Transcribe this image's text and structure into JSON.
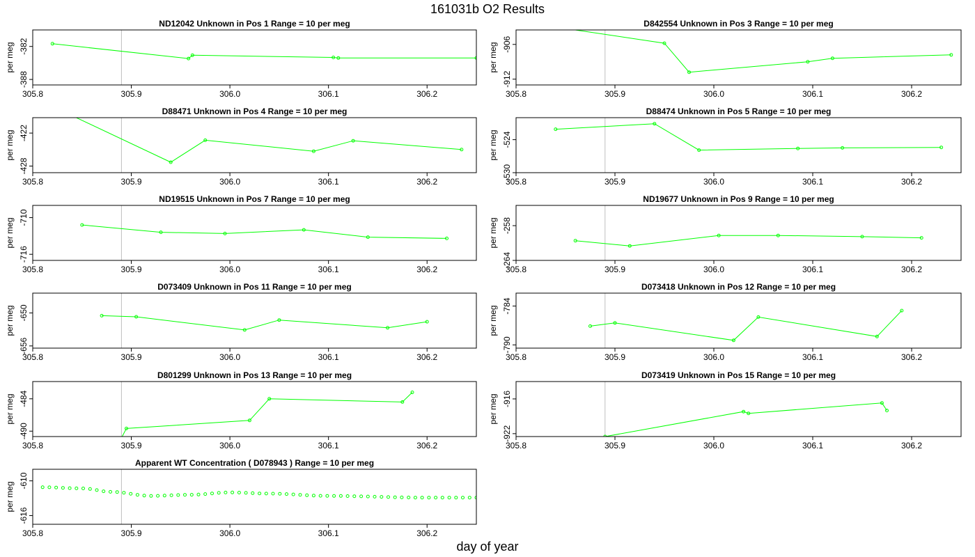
{
  "page": {
    "title": "161031b  O2 Results",
    "xlabel": "day of year"
  },
  "style": {
    "series_color": "#00ff00",
    "marker_line_color": "#bebebe",
    "frame_color": "#000000"
  },
  "chart_data": [
    {
      "type": "line",
      "title": "ND12042    Unknown in Pos 1         Range = 10 per meg",
      "xlabel": "",
      "ylabel": "per meg",
      "xlim": [
        305.8,
        306.25
      ],
      "ylim": [
        -389,
        -379
      ],
      "yticks": [
        -382,
        -388
      ],
      "xticks": [
        305.8,
        305.9,
        306.0,
        306.1,
        306.2
      ],
      "vlines": [
        305.89,
        306.25
      ],
      "series": [
        {
          "x": [
            305.82,
            305.958,
            305.962,
            306.105,
            306.11,
            306.25
          ],
          "y": [
            -381.5,
            -384.2,
            -383.6,
            -384.0,
            -384.1,
            -384.1
          ]
        }
      ]
    },
    {
      "type": "line",
      "title": "D842554    Unknown in Pos 3         Range = 10 per meg",
      "xlabel": "",
      "ylabel": "per meg",
      "xlim": [
        305.8,
        306.25
      ],
      "ylim": [
        -913,
        -903.5
      ],
      "yticks": [
        -906,
        -912
      ],
      "xticks": [
        305.8,
        305.9,
        306.0,
        306.1,
        306.2
      ],
      "vlines": [
        305.89,
        306.25
      ],
      "series": [
        {
          "x": [
            305.84,
            305.95,
            305.975,
            306.095,
            306.12,
            306.24
          ],
          "y": [
            -903.0,
            -905.8,
            -910.8,
            -909.0,
            -908.4,
            -907.8
          ]
        }
      ]
    },
    {
      "type": "line",
      "title": "D88471    Unknown in Pos 4         Range = 10 per meg",
      "xlabel": "",
      "ylabel": "per meg",
      "xlim": [
        305.8,
        306.25
      ],
      "ylim": [
        -429.2,
        -419.2
      ],
      "yticks": [
        -422,
        -428
      ],
      "xticks": [
        305.8,
        305.9,
        306.0,
        306.1,
        306.2
      ],
      "vlines": [
        305.89,
        306.25
      ],
      "series": [
        {
          "x": [
            305.83,
            305.94,
            305.975,
            306.085,
            306.125,
            306.235
          ],
          "y": [
            -418.0,
            -427.3,
            -423.3,
            -425.3,
            -423.4,
            -425.0
          ]
        }
      ]
    },
    {
      "type": "line",
      "title": "D88474    Unknown in Pos 5         Range = 10 per meg",
      "xlabel": "",
      "ylabel": "per meg",
      "xlim": [
        305.8,
        306.25
      ],
      "ylim": [
        -530,
        -520
      ],
      "yticks": [
        -524,
        -530
      ],
      "xticks": [
        305.8,
        305.9,
        306.0,
        306.1,
        306.2
      ],
      "vlines": [
        305.89,
        306.25
      ],
      "series": [
        {
          "x": [
            305.84,
            305.94,
            305.985,
            306.085,
            306.13,
            306.23
          ],
          "y": [
            -522.1,
            -521.1,
            -525.9,
            -525.6,
            -525.5,
            -525.4
          ]
        }
      ]
    },
    {
      "type": "line",
      "title": "ND19515    Unknown in Pos 7         Range = 10 per meg",
      "xlabel": "",
      "ylabel": "per meg",
      "xlim": [
        305.8,
        306.25
      ],
      "ylim": [
        -717,
        -708
      ],
      "yticks": [
        -710,
        -716
      ],
      "xticks": [
        305.8,
        305.9,
        306.0,
        306.1,
        306.2
      ],
      "vlines": [
        305.89,
        306.25
      ],
      "series": [
        {
          "x": [
            305.85,
            305.93,
            305.995,
            306.075,
            306.14,
            306.22
          ],
          "y": [
            -711.2,
            -712.4,
            -712.6,
            -712.0,
            -713.2,
            -713.4
          ]
        }
      ]
    },
    {
      "type": "line",
      "title": "ND19677    Unknown in Pos 9         Range = 10 per meg",
      "xlabel": "",
      "ylabel": "per meg",
      "xlim": [
        305.8,
        306.25
      ],
      "ylim": [
        -264,
        -254.5
      ],
      "yticks": [
        -258,
        -264
      ],
      "xticks": [
        305.8,
        305.9,
        306.0,
        306.1,
        306.2
      ],
      "vlines": [
        305.89,
        306.25
      ],
      "series": [
        {
          "x": [
            305.86,
            305.915,
            306.005,
            306.065,
            306.15,
            306.21
          ],
          "y": [
            -260.6,
            -261.5,
            -259.7,
            -259.7,
            -259.9,
            -260.1
          ]
        }
      ]
    },
    {
      "type": "line",
      "title": "D073409    Unknown in Pos 11         Range = 10 per meg",
      "xlabel": "",
      "ylabel": "per meg",
      "xlim": [
        305.8,
        306.25
      ],
      "ylim": [
        -656.4,
        -646.4
      ],
      "yticks": [
        -650,
        -656
      ],
      "xticks": [
        305.8,
        305.9,
        306.0,
        306.1,
        306.2
      ],
      "vlines": [
        305.89,
        306.25
      ],
      "series": [
        {
          "x": [
            305.87,
            305.905,
            306.015,
            306.05,
            306.16,
            306.2
          ],
          "y": [
            -650.5,
            -650.7,
            -653.1,
            -651.3,
            -652.7,
            -651.6
          ]
        }
      ]
    },
    {
      "type": "line",
      "title": "D073418    Unknown in Pos 12         Range = 10 per meg",
      "xlabel": "",
      "ylabel": "per meg",
      "xlim": [
        305.8,
        306.25
      ],
      "ylim": [
        -790.5,
        -782
      ],
      "yticks": [
        -784,
        -790
      ],
      "xticks": [
        305.8,
        305.9,
        306.0,
        306.1,
        306.2
      ],
      "vlines": [
        305.89,
        306.25
      ],
      "series": [
        {
          "x": [
            305.875,
            305.9,
            306.02,
            306.045,
            306.165,
            306.19
          ],
          "y": [
            -787.1,
            -786.6,
            -789.3,
            -785.7,
            -788.7,
            -784.7
          ]
        }
      ]
    },
    {
      "type": "line",
      "title": "D801299    Unknown in Pos 13         Range = 10 per meg",
      "xlabel": "",
      "ylabel": "per meg",
      "xlim": [
        305.8,
        306.25
      ],
      "ylim": [
        -491,
        -480.8
      ],
      "yticks": [
        -484,
        -490
      ],
      "xticks": [
        305.8,
        305.9,
        306.0,
        306.1,
        306.2
      ],
      "vlines": [
        305.89,
        306.25
      ],
      "series": [
        {
          "x": [
            305.885,
            305.895,
            306.02,
            306.04,
            306.175,
            306.185
          ],
          "y": [
            -493.0,
            -489.5,
            -488.0,
            -484.0,
            -484.6,
            -482.8
          ]
        }
      ]
    },
    {
      "type": "line",
      "title": "D073419    Unknown in Pos 15         Range = 10 per meg",
      "xlabel": "",
      "ylabel": "per meg",
      "xlim": [
        305.8,
        306.25
      ],
      "ylim": [
        -922.5,
        -913
      ],
      "yticks": [
        -916,
        -922
      ],
      "xticks": [
        305.8,
        305.9,
        306.0,
        306.1,
        306.2
      ],
      "vlines": [
        305.89,
        306.25
      ],
      "series": [
        {
          "x": [
            305.89,
            306.03,
            306.035,
            306.17,
            306.175
          ],
          "y": [
            -922.5,
            -918.2,
            -918.5,
            -916.7,
            -918.0
          ]
        }
      ]
    },
    {
      "type": "scatter",
      "title": "Apparent WT Concentration ( D078943 )         Range = 10 per meg",
      "xlabel": "",
      "ylabel": "per meg",
      "xlim": [
        305.8,
        306.25
      ],
      "ylim": [
        -617.5,
        -608
      ],
      "yticks": [
        -610,
        -616
      ],
      "xticks": [
        305.8,
        305.9,
        306.0,
        306.1,
        306.2
      ],
      "vlines": [
        305.89,
        306.25
      ],
      "series": [
        {
          "x_start": 305.81,
          "x_end": 306.25,
          "curve": [
            [
              305.81,
              -611.1
            ],
            [
              305.85,
              -611.3
            ],
            [
              305.88,
              -611.9
            ],
            [
              305.92,
              -612.6
            ],
            [
              305.96,
              -612.4
            ],
            [
              306.0,
              -612.0
            ],
            [
              306.04,
              -612.2
            ],
            [
              306.1,
              -612.6
            ],
            [
              306.2,
              -612.9
            ],
            [
              306.25,
              -612.9
            ]
          ],
          "n_points": 65
        }
      ]
    }
  ]
}
